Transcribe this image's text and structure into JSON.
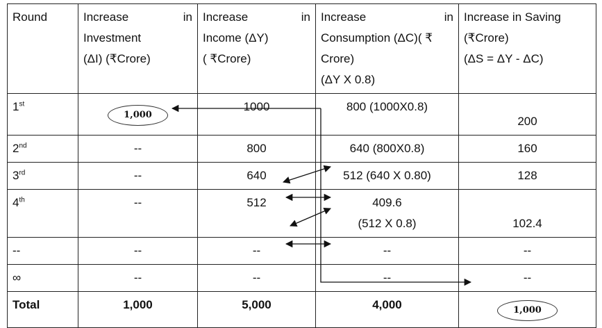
{
  "headers": {
    "round": "Round",
    "investment_a": "Increase",
    "investment_b": "in",
    "investment_c": "Investment",
    "investment_d": "(ΔI) (₹Crore)",
    "income_a": "Increase",
    "income_b": "in",
    "income_c": "Income (ΔY)",
    "income_d": "( ₹Crore)",
    "consumption_a": "Increase",
    "consumption_b": "in",
    "consumption_c": "Consumption (ΔC)( ₹",
    "consumption_d": "Crore)",
    "consumption_e": "(ΔY X 0.8)",
    "saving_a": "Increase  in Saving",
    "saving_b": "(₹Crore)",
    "saving_c": "(ΔS = ΔY - ΔC)"
  },
  "rows": [
    {
      "round": "1",
      "sup": "st",
      "investment": "1,000",
      "income": "1000",
      "consumption": "800 (1000X0.8)",
      "saving": "200"
    },
    {
      "round": "2",
      "sup": "nd",
      "investment": "--",
      "income": "800",
      "consumption": "640 (800X0.8)",
      "saving": "160"
    },
    {
      "round": "3",
      "sup": "rd",
      "investment": "--",
      "income": "640",
      "consumption": "512 (640 X 0.80)",
      "saving": "128"
    },
    {
      "round": "4",
      "sup": "th",
      "investment": "--",
      "income": "512",
      "consumption_a": "409.6",
      "consumption_b": "(512 X 0.8)",
      "saving": "102.4"
    },
    {
      "round": "--",
      "investment": "--",
      "income": "--",
      "consumption": "--",
      "saving": "--"
    },
    {
      "round": "∞",
      "investment": "--",
      "income": "--",
      "consumption": "--",
      "saving": "--"
    }
  ],
  "total": {
    "label": "Total",
    "investment": "1,000",
    "income": "5,000",
    "consumption": "4,000",
    "saving": "1,000"
  }
}
